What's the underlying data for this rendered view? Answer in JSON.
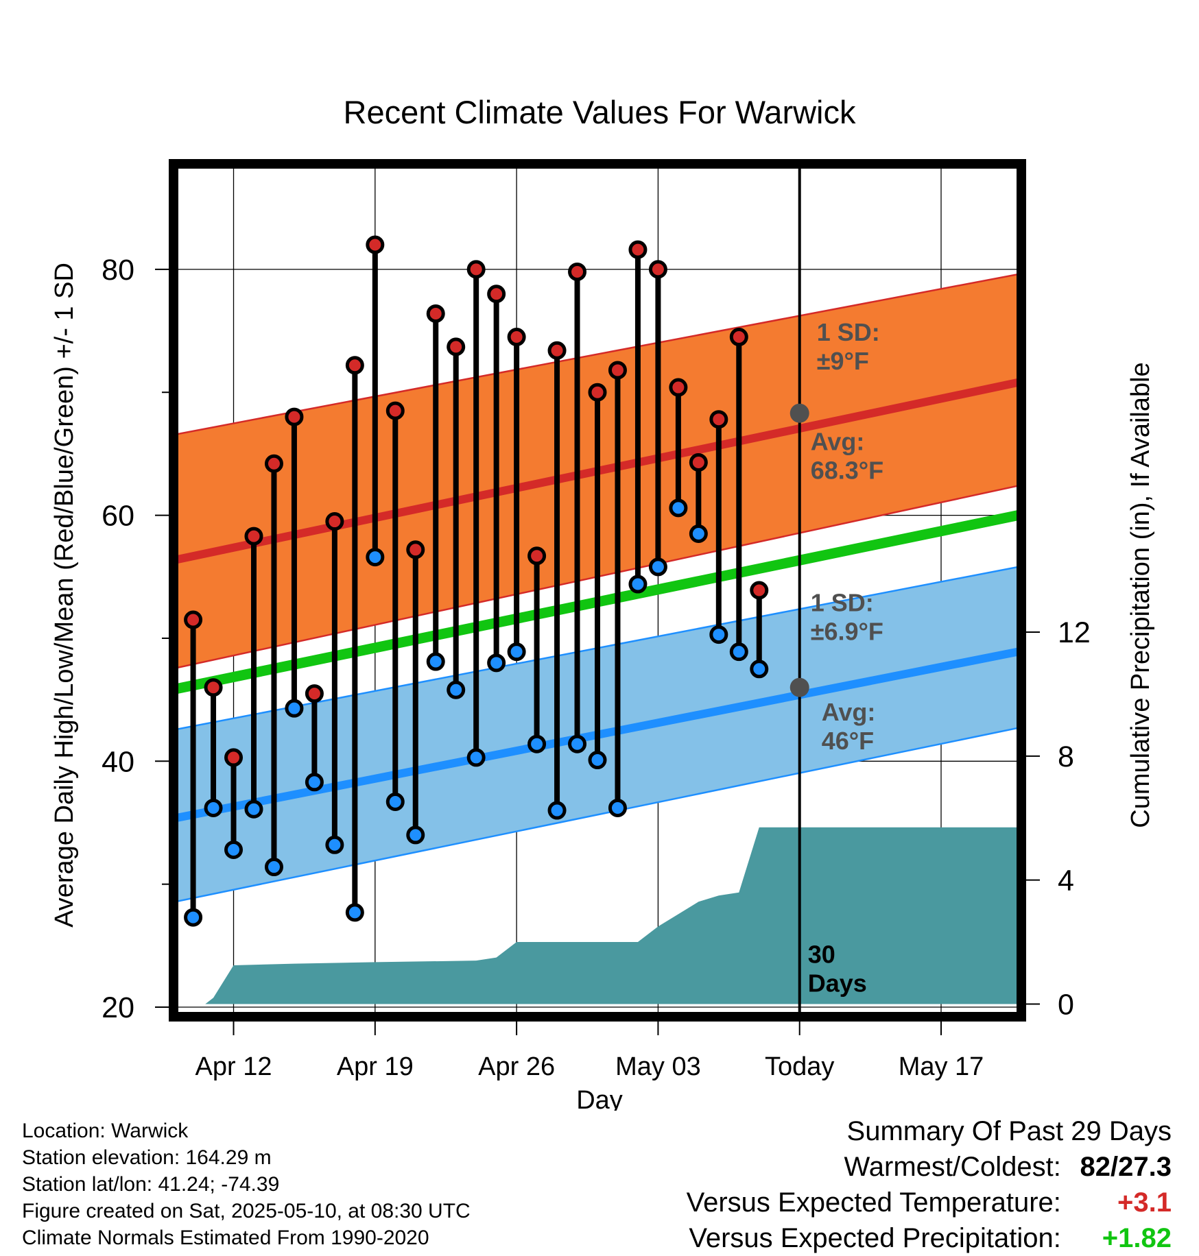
{
  "chart_data": {
    "type": "line",
    "title": "Recent Climate Values For Warwick",
    "xlabel": "Day",
    "ylabel": "Average Daily High/Low/Mean (Red/Blue/Green) +/- 1 SD",
    "y2label": "Cumulative Precipitation (in), If Available",
    "xlim": [
      -2.8,
      38.8
    ],
    "ylim": [
      19.5,
      88.3
    ],
    "y2lim": [
      -0.3,
      27.0
    ],
    "x_tick_positions": [
      0,
      7,
      14,
      21,
      28,
      35
    ],
    "x_tick_labels": [
      "Apr 12",
      "Apr 19",
      "Apr 26",
      "May 03",
      "Today",
      "May 17"
    ],
    "y_ticks": [
      20,
      40,
      60,
      80
    ],
    "y_tick_labels": [
      "20",
      "40",
      "60",
      "80"
    ],
    "y2_ticks": [
      0,
      4,
      8,
      12
    ],
    "y2_tick_labels": [
      "0",
      "4",
      "8",
      "12"
    ],
    "grid": true,
    "today_x": 28,
    "today_label": [
      "30",
      "Days"
    ],
    "normals": {
      "x": [
        -2.8,
        38.8
      ],
      "high_mean": [
        56.4,
        70.8
      ],
      "high_upper": [
        66.6,
        79.6
      ],
      "high_lower": [
        47.6,
        62.4
      ],
      "mean": [
        45.9,
        60.0
      ],
      "low_mean": [
        35.4,
        48.9
      ],
      "low_upper": [
        42.6,
        55.8
      ],
      "low_lower": [
        28.6,
        42.7
      ]
    },
    "series": [
      {
        "name": "High",
        "x": [
          -2,
          -1,
          0,
          1,
          2,
          3,
          4,
          5,
          6,
          7,
          8,
          9,
          10,
          11,
          12,
          13,
          14,
          15,
          16,
          17,
          18,
          19,
          20,
          21,
          22,
          23,
          24,
          25,
          26
        ],
        "values": [
          51.5,
          46.0,
          40.3,
          58.3,
          64.2,
          68.0,
          45.5,
          59.5,
          72.2,
          82.0,
          68.5,
          57.2,
          76.4,
          73.7,
          80.0,
          78.0,
          74.5,
          56.7,
          73.4,
          79.8,
          70.0,
          71.8,
          81.6,
          80.0,
          70.4,
          64.3,
          67.8,
          74.5,
          53.9
        ]
      },
      {
        "name": "Low",
        "x": [
          -2,
          -1,
          0,
          1,
          2,
          3,
          4,
          5,
          6,
          7,
          8,
          9,
          10,
          11,
          12,
          13,
          14,
          15,
          16,
          17,
          18,
          19,
          20,
          21,
          22,
          23,
          24,
          25,
          26
        ],
        "values": [
          27.3,
          36.2,
          32.8,
          36.1,
          31.4,
          44.3,
          38.3,
          33.2,
          27.7,
          56.6,
          36.7,
          34.0,
          48.1,
          45.8,
          40.3,
          48.0,
          48.9,
          41.4,
          36.0,
          41.4,
          40.1,
          36.2,
          54.4,
          55.8,
          60.6,
          58.5,
          50.3,
          48.9,
          47.5
        ]
      },
      {
        "name": "Precipitation",
        "x": [
          -2.8,
          -1.4,
          -1.0,
          0.0,
          3.0,
          7.0,
          12.0,
          13.0,
          14.0,
          20.0,
          21.0,
          22.0,
          23.0,
          24.0,
          25.0,
          26.0,
          28.0,
          38.8
        ],
        "values": [
          0.0,
          0.0,
          0.2,
          1.25,
          1.3,
          1.35,
          1.4,
          1.5,
          2.0,
          2.0,
          2.5,
          2.9,
          3.3,
          3.5,
          3.6,
          5.7,
          5.7,
          5.7
        ]
      }
    ],
    "annotations": {
      "high_sd_label": [
        "1 SD:",
        "±9°F"
      ],
      "high_avg_label": [
        "Avg:",
        "68.3°F"
      ],
      "low_sd_label": [
        "1 SD:",
        "±6.9°F"
      ],
      "low_avg_label": [
        "Avg:",
        "46°F"
      ],
      "high_avg_value": 68.3,
      "low_avg_value": 46.0
    },
    "colors": {
      "high_band": "#f47b30",
      "high_line": "#d42a28",
      "high_edge": "#d42a28",
      "mean_line": "#11c511",
      "low_band": "#84c1e8",
      "low_line": "#1e8fff",
      "low_edge": "#1e8fff",
      "precip_fill": "#4a999f",
      "high_dot": "#d42a28",
      "low_dot": "#1e8fff",
      "annotation_text": "#505050"
    }
  },
  "footer": {
    "location": "Location: Warwick",
    "elevation": "Station elevation: 164.29 m",
    "latlon": "Station lat/lon: 41.24; -74.39",
    "created": "Figure created on Sat, 2025-05-10, at 08:30 UTC",
    "normals": "Climate Normals Estimated From 1990-2020"
  },
  "summary": {
    "title": "Summary Of Past 29 Days",
    "warmest_label": "Warmest/Coldest:",
    "warmest_value": "82/27.3",
    "temp_label": "Versus Expected Temperature:",
    "temp_value": "+3.1",
    "temp_color": "#d42a28",
    "precip_label": "Versus Expected Precipitation:",
    "precip_value": "+1.82",
    "precip_color": "#11c511"
  }
}
